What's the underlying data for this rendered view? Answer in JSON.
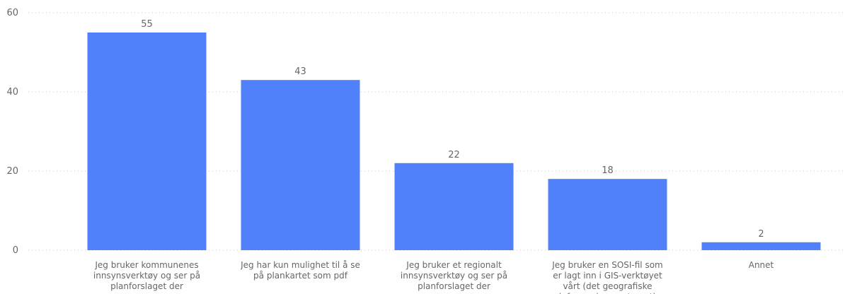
{
  "chart_data": {
    "type": "bar",
    "categories": [
      "Jeg bruker kommunenes innsynsverktøy og ser på planforslaget der",
      "Jeg har kun mulighet til å se på plankartet som pdf",
      "Jeg bruker et regionalt innsynsverktøy og ser på planforslaget der",
      "Jeg bruker en SOSI-fil som er lagt inn i GIS-verktøyet vårt (det geografiske informasjonssystemet)",
      "Annet"
    ],
    "values": [
      55,
      43,
      22,
      18,
      2
    ],
    "title": "",
    "xlabel": "",
    "ylabel": "",
    "ylim": [
      0,
      60
    ],
    "yticks": [
      0,
      20,
      40,
      60
    ],
    "grid": true,
    "bar_color": "#5081fb",
    "data_labels": true
  }
}
